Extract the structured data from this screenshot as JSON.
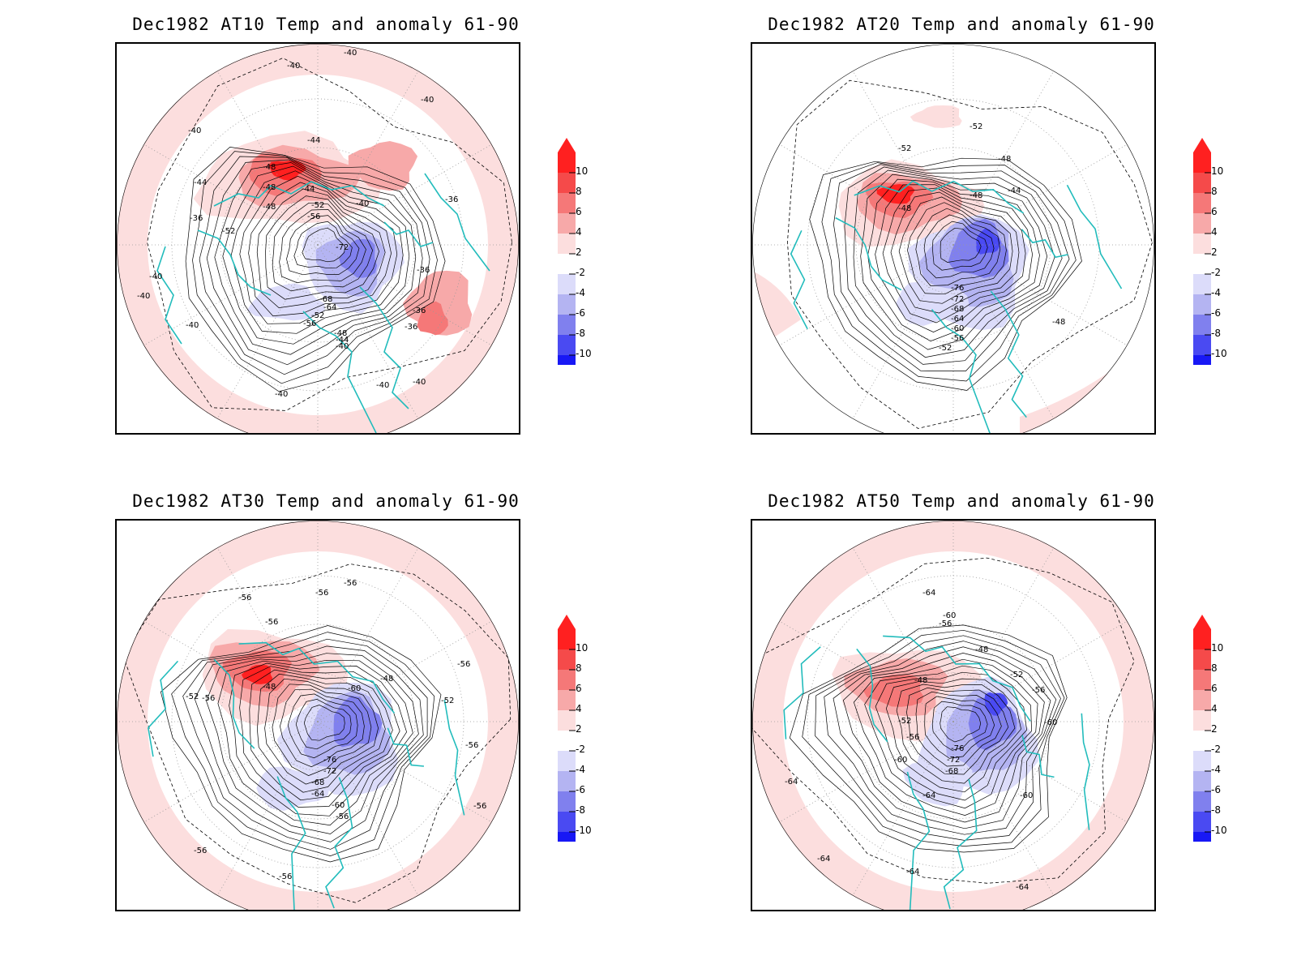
{
  "panels": [
    {
      "title": "Dec1982 AT10 Temp and anomaly 61-90",
      "contour_labels": [
        "-40",
        "-40",
        "-40",
        "-40",
        "-44",
        "-48",
        "-48",
        "-44",
        "-40",
        "-44",
        "-52",
        "-56",
        "-48",
        "-36",
        "-52",
        "-72",
        "-36",
        "-40",
        "-40",
        "-68",
        "-64",
        "-52",
        "-56",
        "-48",
        "-44",
        "-40",
        "-36",
        "-36",
        "-40",
        "-40",
        "-40",
        "-40",
        "-36"
      ],
      "accent": "AT10"
    },
    {
      "title": "Dec1982 AT20 Temp and anomaly 61-90",
      "contour_labels": [
        "-52",
        "-52",
        "-48",
        "-44",
        "-48",
        "-48",
        "-76",
        "-72",
        "-68",
        "-64",
        "-60",
        "-56",
        "-52",
        "-48"
      ],
      "accent": "AT20"
    },
    {
      "title": "Dec1982 AT30 Temp and anomaly 61-90",
      "contour_labels": [
        "-56",
        "-56",
        "-56",
        "-56",
        "-56",
        "-48",
        "-60",
        "-48",
        "-52",
        "-56",
        "-52",
        "-56",
        "-76",
        "-72",
        "-68",
        "-64",
        "-60",
        "-56",
        "-56",
        "-56",
        "-56"
      ],
      "accent": "AT30"
    },
    {
      "title": "Dec1982 AT50 Temp and anomaly 61-90",
      "contour_labels": [
        "-64",
        "-64",
        "-60",
        "-56",
        "-48",
        "-48",
        "-52",
        "-56",
        "-52",
        "-56",
        "-60",
        "-60",
        "-76",
        "-72",
        "-68",
        "-64",
        "-60",
        "-64",
        "-64",
        "-64",
        "-64"
      ],
      "accent": "AT50"
    }
  ],
  "colorbar": {
    "labels": [
      "10",
      "8",
      "6",
      "4",
      "2",
      "-2",
      "-4",
      "-6",
      "-8",
      "-10"
    ],
    "colors": [
      "#ff2020",
      "#f54a4a",
      "#f57878",
      "#f7a9a9",
      "#fcdede",
      "#ffffff",
      "#dcdcfa",
      "#b4b4f2",
      "#8080ee",
      "#4a4af2",
      "#1818f5"
    ]
  },
  "colors": {
    "coast": "#22bcbc",
    "warm": "#f87a7a",
    "cold": "#8a8aef"
  }
}
